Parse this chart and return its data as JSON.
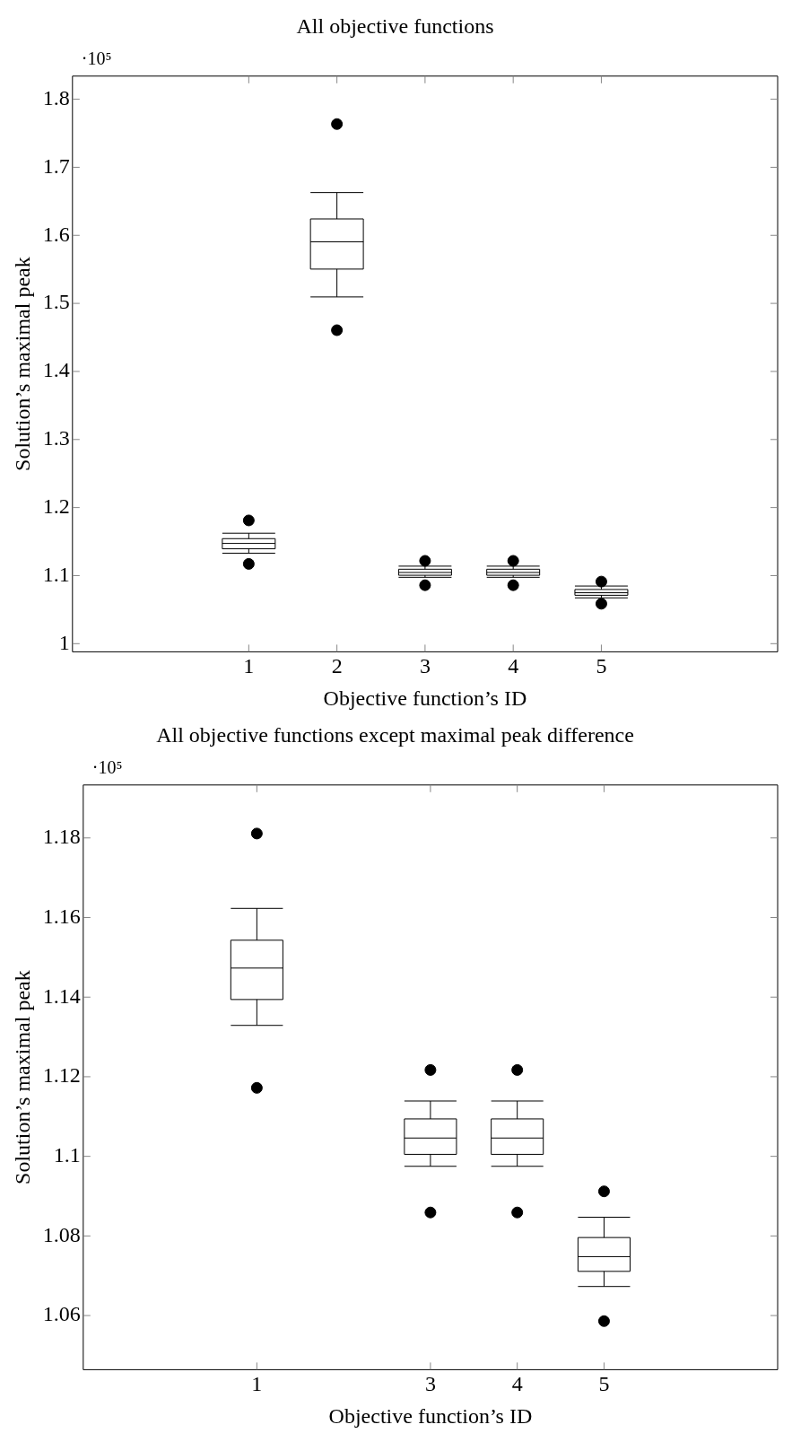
{
  "chart_data": [
    {
      "type": "box",
      "title": "All objective functions",
      "xlabel": "Objective function’s ID",
      "ylabel": "Solution’s maximal peak",
      "annotations": [
        "·10⁵"
      ],
      "x": [
        1,
        2,
        3,
        4,
        5
      ],
      "boxes": [
        {
          "low": 1.1329,
          "q1": 1.1394,
          "median": 1.1473,
          "q3": 1.1543,
          "high": 1.1623,
          "outliers": [
            1.1811,
            1.1172
          ]
        },
        {
          "low": 1.5095,
          "q1": 1.5504,
          "median": 1.5905,
          "q3": 1.6241,
          "high": 1.6628,
          "outliers": [
            1.7635,
            1.4606
          ]
        },
        {
          "low": 1.0975,
          "q1": 1.1005,
          "median": 1.1046,
          "q3": 1.1094,
          "high": 1.1139,
          "outliers": [
            1.1217,
            1.0859
          ]
        },
        {
          "low": 1.0975,
          "q1": 1.1005,
          "median": 1.1046,
          "q3": 1.1094,
          "high": 1.1139,
          "outliers": [
            1.1217,
            1.0859
          ]
        },
        {
          "low": 1.0673,
          "q1": 1.0711,
          "median": 1.0748,
          "q3": 1.0796,
          "high": 1.0847,
          "outliers": [
            1.0912,
            1.0586
          ]
        }
      ],
      "xlim": [
        -1,
        7
      ],
      "xticks": [
        1,
        2,
        3,
        4,
        5
      ],
      "ylim": [
        0.988,
        1.834
      ],
      "yticks": [
        1,
        1.1,
        1.2,
        1.3,
        1.4,
        1.5,
        1.6,
        1.7,
        1.8
      ]
    },
    {
      "type": "box",
      "title": "All objective functions except maximal peak difference",
      "xlabel": "Objective function’s ID",
      "ylabel": "Solution’s maximal peak",
      "annotations": [
        "·10⁵"
      ],
      "x": [
        1,
        3,
        4,
        5
      ],
      "boxes": [
        {
          "low": 1.1329,
          "q1": 1.1394,
          "median": 1.1473,
          "q3": 1.1543,
          "high": 1.1623,
          "outliers": [
            1.1811,
            1.1172
          ]
        },
        {
          "low": 1.0975,
          "q1": 1.1005,
          "median": 1.1046,
          "q3": 1.1094,
          "high": 1.1139,
          "outliers": [
            1.1217,
            1.0859
          ]
        },
        {
          "low": 1.0975,
          "q1": 1.1005,
          "median": 1.1046,
          "q3": 1.1094,
          "high": 1.1139,
          "outliers": [
            1.1217,
            1.0859
          ]
        },
        {
          "low": 1.0673,
          "q1": 1.0711,
          "median": 1.0748,
          "q3": 1.0796,
          "high": 1.0847,
          "outliers": [
            1.0912,
            1.0586
          ]
        }
      ],
      "xlim": [
        -1,
        7
      ],
      "xticks": [
        1,
        3,
        4,
        5
      ],
      "ylim": [
        1.0464,
        1.1933
      ],
      "yticks": [
        1.06,
        1.08,
        1.1,
        1.12,
        1.14,
        1.16,
        1.18
      ]
    }
  ]
}
